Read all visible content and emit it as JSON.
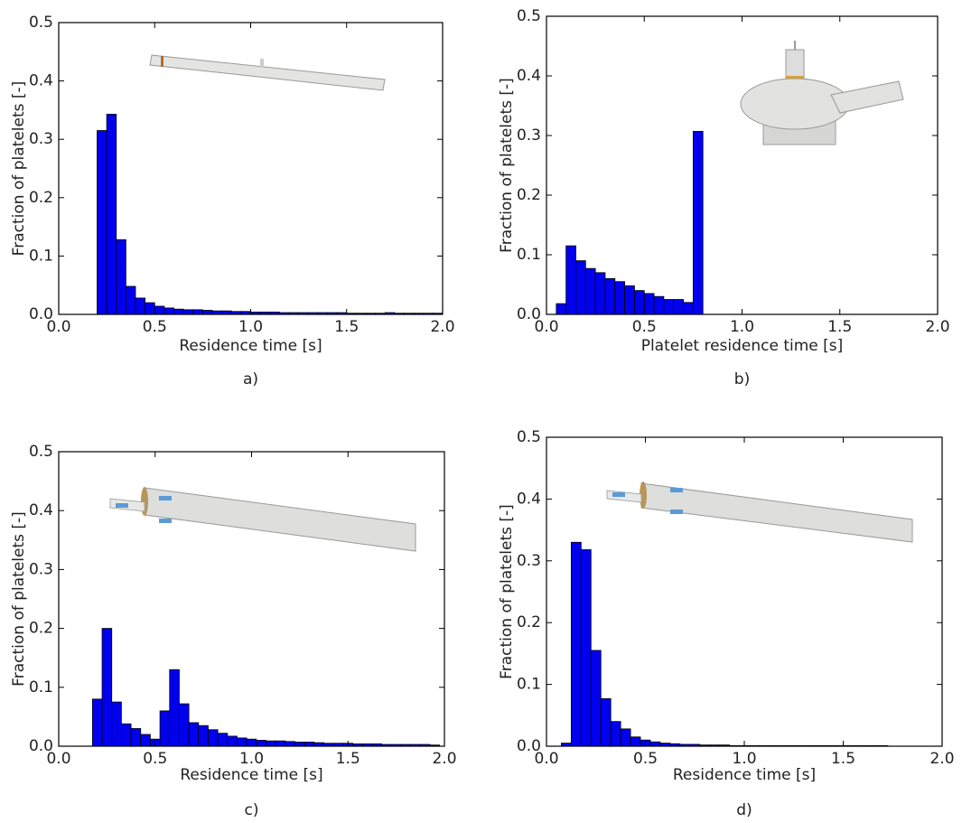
{
  "chart_data": [
    {
      "type": "histogram",
      "caption": "a)",
      "xlabel": "Residence time [s]",
      "ylabel": "Fraction of platelets [-]",
      "color": "#0000ee",
      "xlim": [
        0,
        2
      ],
      "ylim": [
        0,
        0.5
      ],
      "xticks": [
        {
          "value": 0,
          "label": "0.0"
        },
        0.5,
        {
          "value": 1,
          "label": "1.0"
        },
        1.5,
        {
          "value": 2,
          "label": "2.0"
        }
      ],
      "yticks": [
        {
          "value": 0,
          "label": "0.0"
        },
        0.1,
        0.2,
        0.3,
        0.4,
        0.5
      ],
      "bins": [
        0.2,
        0.25,
        0.3,
        0.35,
        0.4,
        0.45,
        0.5,
        0.55,
        0.6,
        0.65,
        0.7,
        0.75,
        0.8,
        0.85,
        0.9,
        0.95,
        1.0,
        1.05,
        1.1,
        1.15,
        1.2,
        1.25,
        1.3,
        1.35,
        1.4,
        1.45,
        1.5,
        1.55,
        1.6,
        1.65,
        1.7,
        1.75,
        1.8,
        1.85,
        1.9,
        1.95,
        2.0
      ],
      "values": [
        0.315,
        0.343,
        0.128,
        0.048,
        0.028,
        0.02,
        0.014,
        0.011,
        0.009,
        0.008,
        0.008,
        0.007,
        0.006,
        0.006,
        0.005,
        0.005,
        0.004,
        0.004,
        0.004,
        0.003,
        0.003,
        0.003,
        0.003,
        0.003,
        0.003,
        0.003,
        0.002,
        0.002,
        0.002,
        0.002,
        0.003,
        0.002,
        0.002,
        0.002,
        0.002,
        0.002
      ]
    },
    {
      "type": "histogram",
      "caption": "b)",
      "xlabel": "Platelet residence time [s]",
      "ylabel": "Fraction of platelets [-]",
      "color": "#0000ee",
      "xlim": [
        0,
        2
      ],
      "ylim": [
        0,
        0.5
      ],
      "xticks": [
        {
          "value": 0,
          "label": "0.0"
        },
        0.5,
        {
          "value": 1,
          "label": "1.0"
        },
        1.5,
        {
          "value": 2,
          "label": "2.0"
        }
      ],
      "yticks": [
        {
          "value": 0,
          "label": "0.0"
        },
        0.1,
        0.2,
        0.3,
        0.4,
        0.5
      ],
      "bins": [
        0.05,
        0.1,
        0.15,
        0.2,
        0.25,
        0.3,
        0.35,
        0.4,
        0.45,
        0.5,
        0.55,
        0.6,
        0.65,
        0.7,
        0.75,
        0.8
      ],
      "values": [
        0.018,
        0.115,
        0.09,
        0.077,
        0.07,
        0.06,
        0.055,
        0.048,
        0.04,
        0.035,
        0.03,
        0.025,
        0.025,
        0.02,
        0.307
      ]
    },
    {
      "type": "histogram",
      "caption": "c)",
      "xlabel": "Residence time [s]",
      "ylabel": "Fraction of platelets [-]",
      "color": "#0000ee",
      "xlim": [
        0,
        2
      ],
      "ylim": [
        0,
        0.5
      ],
      "xticks": [
        {
          "value": 0,
          "label": "0.0"
        },
        0.5,
        {
          "value": 1,
          "label": "1.0"
        },
        1.5,
        {
          "value": 2,
          "label": "2.0"
        }
      ],
      "yticks": [
        {
          "value": 0,
          "label": "0.0"
        },
        0.1,
        0.2,
        0.3,
        0.4,
        0.5
      ],
      "bins": [
        0.175,
        0.225,
        0.275,
        0.325,
        0.375,
        0.425,
        0.475,
        0.525,
        0.575,
        0.625,
        0.675,
        0.725,
        0.775,
        0.825,
        0.875,
        0.925,
        0.975,
        1.025,
        1.075,
        1.125,
        1.175,
        1.225,
        1.275,
        1.325,
        1.375,
        1.425,
        1.475,
        1.525,
        1.575,
        1.625,
        1.675,
        1.725,
        1.775,
        1.825,
        1.875,
        1.925,
        1.975
      ],
      "values": [
        0.08,
        0.2,
        0.075,
        0.038,
        0.03,
        0.02,
        0.012,
        0.06,
        0.13,
        0.072,
        0.04,
        0.035,
        0.028,
        0.022,
        0.017,
        0.014,
        0.012,
        0.01,
        0.009,
        0.009,
        0.008,
        0.007,
        0.007,
        0.006,
        0.005,
        0.005,
        0.005,
        0.004,
        0.004,
        0.004,
        0.003,
        0.003,
        0.003,
        0.003,
        0.003,
        0.002
      ]
    },
    {
      "type": "histogram",
      "caption": "d)",
      "xlabel": "Residence time [s]",
      "ylabel": "Fraction of platelets [-]",
      "color": "#0000ee",
      "xlim": [
        0,
        2
      ],
      "ylim": [
        0,
        0.5
      ],
      "xticks": [
        {
          "value": 0,
          "label": "0.0"
        },
        0.5,
        {
          "value": 1,
          "label": "1.0"
        },
        1.5,
        {
          "value": 2,
          "label": "2.0"
        }
      ],
      "yticks": [
        {
          "value": 0,
          "label": "0.0"
        },
        0.1,
        0.2,
        0.3,
        0.4,
        0.5
      ],
      "bins": [
        0.075,
        0.125,
        0.175,
        0.225,
        0.275,
        0.325,
        0.375,
        0.425,
        0.475,
        0.525,
        0.575,
        0.625,
        0.675,
        0.725,
        0.775,
        0.825,
        0.875,
        0.925,
        0.975,
        1.025,
        1.075,
        1.125,
        1.175,
        1.225,
        1.275,
        1.325,
        1.375,
        1.425,
        1.475,
        1.525,
        1.575,
        1.625,
        1.675,
        1.725
      ],
      "values": [
        0.005,
        0.33,
        0.318,
        0.155,
        0.077,
        0.04,
        0.028,
        0.015,
        0.01,
        0.007,
        0.005,
        0.004,
        0.003,
        0.003,
        0.002,
        0.002,
        0.002,
        0.001,
        0.001,
        0.001,
        0.001,
        0.001,
        0.001,
        0.001,
        0.001,
        0.001,
        0.001,
        0.001,
        0.001,
        0.001,
        0.001,
        0.001,
        0.001
      ]
    }
  ]
}
